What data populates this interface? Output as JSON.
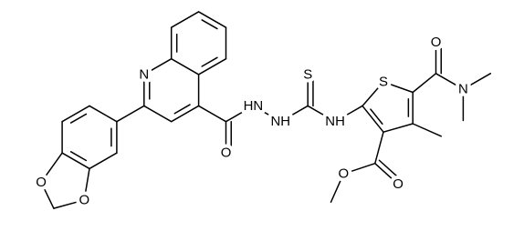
{
  "atoms": [
    {
      "label": "N"
    },
    {
      "label": "O"
    },
    {
      "label": "HN"
    },
    {
      "label": "NH"
    },
    {
      "label": "S"
    },
    {
      "label": "NH"
    },
    {
      "label": "S"
    },
    {
      "label": "O"
    },
    {
      "label": "N"
    },
    {
      "label": "O"
    },
    {
      "label": "O"
    },
    {
      "label": "O"
    },
    {
      "label": "O"
    }
  ]
}
